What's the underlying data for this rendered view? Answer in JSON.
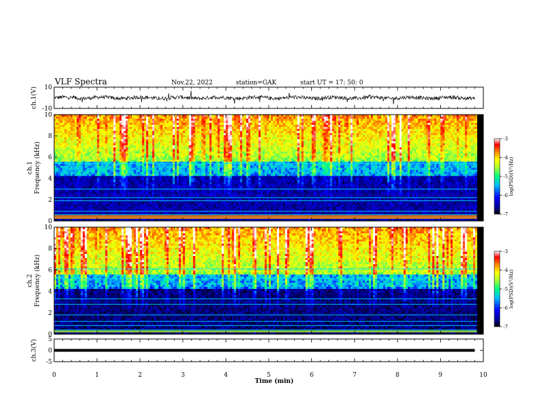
{
  "header": {
    "title": "VLF Spectra",
    "date": "Nov.22, 2022",
    "station": "station=GAK",
    "start": "start  UT  =   17: 50: 0"
  },
  "chart_data": [
    {
      "type": "line",
      "name": "waveform-ch1",
      "ylabel": "ch.1(V)",
      "ylim": [
        -10,
        10
      ],
      "yticks": [
        "10",
        "-10"
      ],
      "xlim": [
        0,
        10
      ]
    },
    {
      "type": "heatmap",
      "name": "spectrogram-ch1",
      "ylabel_top": "ch.1",
      "ylabel": "Frequency (kHz)",
      "ylim": [
        0,
        10
      ],
      "yticks": [
        "0",
        "2",
        "4",
        "6",
        "8",
        "10"
      ],
      "xlim": [
        0,
        10
      ],
      "colorbar": {
        "label": "log(PSD)(V²/Hz)",
        "range": [
          -7,
          -3
        ],
        "ticks": [
          "-3",
          "-4",
          "-5",
          "-6",
          "-7"
        ]
      }
    },
    {
      "type": "heatmap",
      "name": "spectrogram-ch2",
      "ylabel_top": "ch.2",
      "ylabel": "Frequency (kHz)",
      "ylim": [
        0,
        10
      ],
      "yticks": [
        "0",
        "2",
        "4",
        "6",
        "8",
        "10"
      ],
      "xlim": [
        0,
        10
      ],
      "colorbar": {
        "label": "log(PSD)(V²/Hz)",
        "range": [
          -7,
          -3
        ],
        "ticks": [
          "-3",
          "-4",
          "-5",
          "-6",
          "-7"
        ]
      }
    },
    {
      "type": "line",
      "name": "waveform-ch3",
      "ylabel": "ch.3(V)",
      "ylim": [
        -5,
        5
      ],
      "yticks": [
        "5",
        "0",
        "-5"
      ],
      "x": [
        0,
        9.8
      ],
      "y": [
        0,
        0
      ],
      "xlim": [
        0,
        10
      ],
      "xlabel": "Time (min)",
      "xticks": [
        "0",
        "1",
        "2",
        "3",
        "4",
        "5",
        "6",
        "7",
        "8",
        "9",
        "10"
      ]
    }
  ],
  "colors": {
    "background": "#ffffff",
    "colormap": [
      "#000000",
      "#00008b",
      "#0000ff",
      "#00bfff",
      "#00ff7f",
      "#adff2f",
      "#ffff00",
      "#ff8c00",
      "#ff0000",
      "#ffffff"
    ]
  }
}
